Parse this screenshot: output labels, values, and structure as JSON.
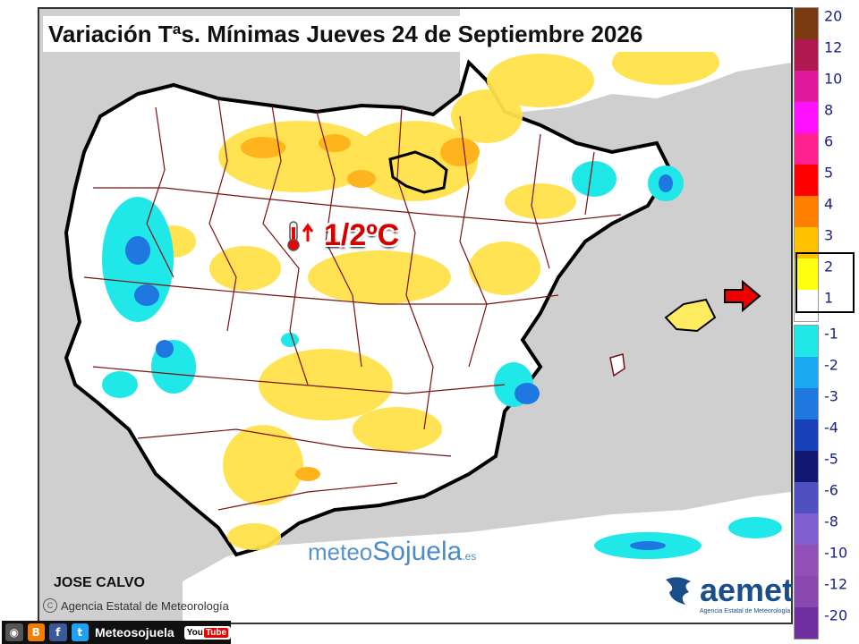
{
  "title": "Variación Tªs. Mínimas Jueves 24 de Septiembre 2026",
  "annotation": {
    "value": "1/2ºC",
    "icon": "thermometer-rising-icon"
  },
  "author": "JOSE CALVO",
  "credit": "Agencia Estatal de Meteorología",
  "watermark": {
    "part1": "meteo",
    "part2": "Sojuela",
    "part3": ".es"
  },
  "logo": {
    "name": "aemet",
    "subtitle": "Agencia Estatal de Meteorología"
  },
  "social": {
    "label": "Meteosojuela",
    "youtube_a": "You",
    "youtube_b": "Tube",
    "facebook_glyph": "f",
    "twitter_glyph": "t",
    "blogger_glyph": "B"
  },
  "legend": {
    "warm": [
      {
        "label": "20",
        "color": "#7a3a10"
      },
      {
        "label": "12",
        "color": "#b01850"
      },
      {
        "label": "10",
        "color": "#e0189c"
      },
      {
        "label": "8",
        "color": "#ff10ff"
      },
      {
        "label": "6",
        "color": "#ff2090"
      },
      {
        "label": "5",
        "color": "#ff0000"
      },
      {
        "label": "4",
        "color": "#ff7f00"
      },
      {
        "label": "3",
        "color": "#ffc000"
      },
      {
        "label": "2",
        "color": "#ffff10"
      },
      {
        "label": "1",
        "color": "#ffffff"
      }
    ],
    "cold": [
      {
        "label": "-1",
        "color": "#20e8e8"
      },
      {
        "label": "-2",
        "color": "#1aa8f0"
      },
      {
        "label": "-3",
        "color": "#1e78e0"
      },
      {
        "label": "-4",
        "color": "#1840b8"
      },
      {
        "label": "-5",
        "color": "#101870"
      },
      {
        "label": "-6",
        "color": "#5050c0"
      },
      {
        "label": "-8",
        "color": "#8060d0"
      },
      {
        "label": "-10",
        "color": "#9050b8"
      },
      {
        "label": "-12",
        "color": "#8848b0"
      },
      {
        "label": "-20",
        "color": "#7030a0"
      }
    ],
    "highlighted_range": [
      "2",
      "1"
    ]
  },
  "colors": {
    "land": "#ffffff",
    "sea": "#cfcfcf",
    "warm_anomaly": "#ffe24a",
    "strong_warm": "#ffb41e",
    "cold_anomaly": "#20e8e8",
    "strong_cold": "#1e78e0",
    "borders": "#7a1010",
    "coast": "#000000"
  }
}
